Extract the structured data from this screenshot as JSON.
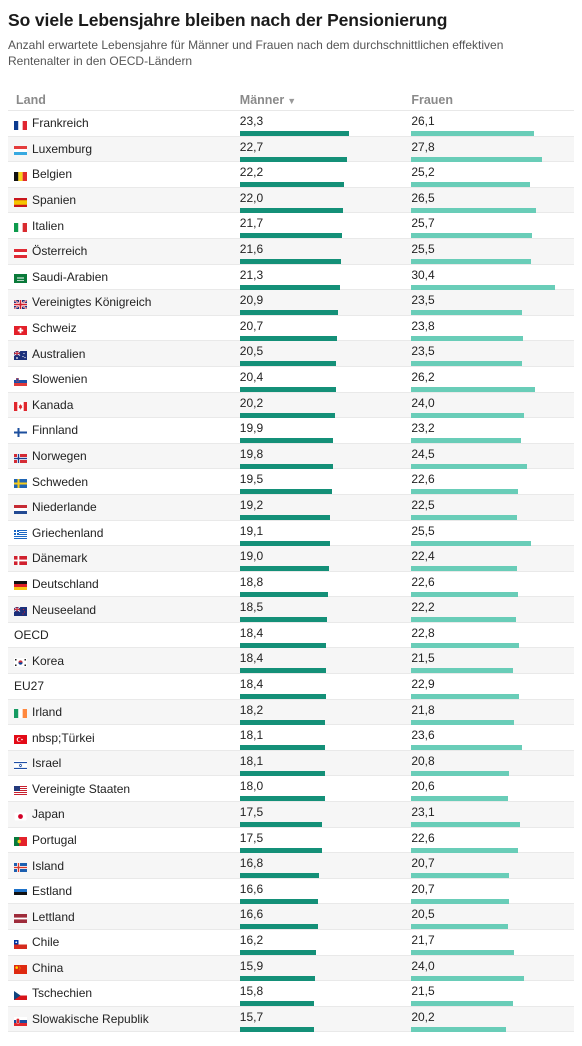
{
  "header": {
    "title": "So viele Lebensjahre bleiben nach der Pensionierung",
    "subtitle": "Anzahl erwartete Lebensjahre für Männer und Frauen nach dem durchschnittlichen effektiven Rentenalter in den OECD-Ländern"
  },
  "table": {
    "col_land": "Land",
    "col_maenner": "Männer",
    "col_frauen": "Frauen",
    "sort_icon": "sort-descending-icon"
  },
  "colors": {
    "men_bar": "#149078",
    "women_bar": "#69cdb8"
  },
  "chart_data": {
    "type": "table",
    "columns": [
      "Land",
      "Männer",
      "Frauen"
    ],
    "bar_scale_max": 31,
    "rows": [
      {
        "land": "Frankreich",
        "flag": "FR",
        "maenner": "23,3",
        "frauen": "26,1",
        "m": 23.3,
        "f": 26.1
      },
      {
        "land": "Luxemburg",
        "flag": "LU",
        "maenner": "22,7",
        "frauen": "27,8",
        "m": 22.7,
        "f": 27.8
      },
      {
        "land": "Belgien",
        "flag": "BE",
        "maenner": "22,2",
        "frauen": "25,2",
        "m": 22.2,
        "f": 25.2
      },
      {
        "land": "Spanien",
        "flag": "ES",
        "maenner": "22,0",
        "frauen": "26,5",
        "m": 22.0,
        "f": 26.5
      },
      {
        "land": "Italien",
        "flag": "IT",
        "maenner": "21,7",
        "frauen": "25,7",
        "m": 21.7,
        "f": 25.7
      },
      {
        "land": "Österreich",
        "flag": "AT",
        "maenner": "21,6",
        "frauen": "25,5",
        "m": 21.6,
        "f": 25.5
      },
      {
        "land": "Saudi-Arabien",
        "flag": "SA",
        "maenner": "21,3",
        "frauen": "30,4",
        "m": 21.3,
        "f": 30.4
      },
      {
        "land": "Vereinigtes Königreich",
        "flag": "GB",
        "maenner": "20,9",
        "frauen": "23,5",
        "m": 20.9,
        "f": 23.5
      },
      {
        "land": "Schweiz",
        "flag": "CH",
        "maenner": "20,7",
        "frauen": "23,8",
        "m": 20.7,
        "f": 23.8
      },
      {
        "land": "Australien",
        "flag": "AU",
        "maenner": "20,5",
        "frauen": "23,5",
        "m": 20.5,
        "f": 23.5
      },
      {
        "land": "Slowenien",
        "flag": "SI",
        "maenner": "20,4",
        "frauen": "26,2",
        "m": 20.4,
        "f": 26.2
      },
      {
        "land": "Kanada",
        "flag": "CA",
        "maenner": "20,2",
        "frauen": "24,0",
        "m": 20.2,
        "f": 24.0
      },
      {
        "land": "Finnland",
        "flag": "FI",
        "maenner": "19,9",
        "frauen": "23,2",
        "m": 19.9,
        "f": 23.2
      },
      {
        "land": "Norwegen",
        "flag": "NO",
        "maenner": "19,8",
        "frauen": "24,5",
        "m": 19.8,
        "f": 24.5
      },
      {
        "land": "Schweden",
        "flag": "SE",
        "maenner": "19,5",
        "frauen": "22,6",
        "m": 19.5,
        "f": 22.6
      },
      {
        "land": "Niederlande",
        "flag": "NL",
        "maenner": "19,2",
        "frauen": "22,5",
        "m": 19.2,
        "f": 22.5
      },
      {
        "land": "Griechenland",
        "flag": "GR",
        "maenner": "19,1",
        "frauen": "25,5",
        "m": 19.1,
        "f": 25.5
      },
      {
        "land": "Dänemark",
        "flag": "DK",
        "maenner": "19,0",
        "frauen": "22,4",
        "m": 19.0,
        "f": 22.4
      },
      {
        "land": "Deutschland",
        "flag": "DE",
        "maenner": "18,8",
        "frauen": "22,6",
        "m": 18.8,
        "f": 22.6
      },
      {
        "land": "Neuseeland",
        "flag": "NZ",
        "maenner": "18,5",
        "frauen": "22,2",
        "m": 18.5,
        "f": 22.2
      },
      {
        "land": "OECD",
        "flag": "",
        "maenner": "18,4",
        "frauen": "22,8",
        "m": 18.4,
        "f": 22.8
      },
      {
        "land": "Korea",
        "flag": "KR",
        "maenner": "18,4",
        "frauen": "21,5",
        "m": 18.4,
        "f": 21.5
      },
      {
        "land": "EU27",
        "flag": "",
        "maenner": "18,4",
        "frauen": "22,9",
        "m": 18.4,
        "f": 22.9
      },
      {
        "land": "Irland",
        "flag": "IE",
        "maenner": "18,2",
        "frauen": "21,8",
        "m": 18.2,
        "f": 21.8
      },
      {
        "land": "nbsp;Türkei",
        "flag": "TR",
        "maenner": "18,1",
        "frauen": "23,6",
        "m": 18.1,
        "f": 23.6
      },
      {
        "land": "Israel",
        "flag": "IL",
        "maenner": "18,1",
        "frauen": "20,8",
        "m": 18.1,
        "f": 20.8
      },
      {
        "land": "Vereinigte Staaten",
        "flag": "US",
        "maenner": "18,0",
        "frauen": "20,6",
        "m": 18.0,
        "f": 20.6
      },
      {
        "land": "Japan",
        "flag": "JP",
        "maenner": "17,5",
        "frauen": "23,1",
        "m": 17.5,
        "f": 23.1
      },
      {
        "land": "Portugal",
        "flag": "PT",
        "maenner": "17,5",
        "frauen": "22,6",
        "m": 17.5,
        "f": 22.6
      },
      {
        "land": "Island",
        "flag": "IS",
        "maenner": "16,8",
        "frauen": "20,7",
        "m": 16.8,
        "f": 20.7
      },
      {
        "land": "Estland",
        "flag": "EE",
        "maenner": "16,6",
        "frauen": "20,7",
        "m": 16.6,
        "f": 20.7
      },
      {
        "land": "Lettland",
        "flag": "LV",
        "maenner": "16,6",
        "frauen": "20,5",
        "m": 16.6,
        "f": 20.5
      },
      {
        "land": "Chile",
        "flag": "CL",
        "maenner": "16,2",
        "frauen": "21,7",
        "m": 16.2,
        "f": 21.7
      },
      {
        "land": "China",
        "flag": "CN",
        "maenner": "15,9",
        "frauen": "24,0",
        "m": 15.9,
        "f": 24.0
      },
      {
        "land": "Tschechien",
        "flag": "CZ",
        "maenner": "15,8",
        "frauen": "21,5",
        "m": 15.8,
        "f": 21.5
      },
      {
        "land": "Slowakische Republik",
        "flag": "SK",
        "maenner": "15,7",
        "frauen": "20,2",
        "m": 15.7,
        "f": 20.2
      }
    ]
  }
}
